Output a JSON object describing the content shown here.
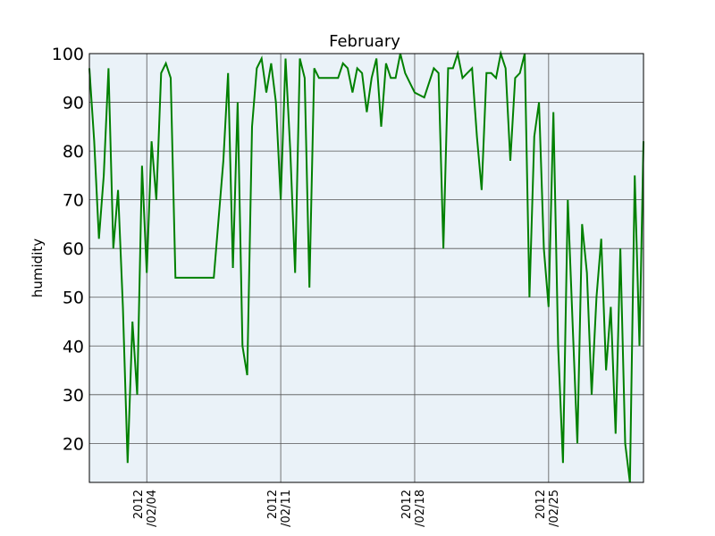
{
  "chart_data": {
    "type": "line",
    "title": "February",
    "xlabel": "",
    "ylabel": "humidity",
    "ylim": [
      12,
      100
    ],
    "xlim": [
      "2012-02-01T00:00",
      "2012-02-29T23:00"
    ],
    "grid": true,
    "legend": "none",
    "colors": {
      "plot_background": "#eaf2f8",
      "series": "#008000",
      "grid": "#555555"
    },
    "y_ticks": [
      {
        "value": 20,
        "label": "20"
      },
      {
        "value": 30,
        "label": "30"
      },
      {
        "value": 40,
        "label": "40"
      },
      {
        "value": 50,
        "label": "50"
      },
      {
        "value": 60,
        "label": "60"
      },
      {
        "value": 70,
        "label": "70"
      },
      {
        "value": 80,
        "label": "80"
      },
      {
        "value": 90,
        "label": "90"
      },
      {
        "value": 100,
        "label": "100"
      }
    ],
    "x_ticks": [
      {
        "value": "2012-02-04",
        "line1": "2012",
        "line2": "/02/04"
      },
      {
        "value": "2012-02-11",
        "line1": "2012",
        "line2": "/02/11"
      },
      {
        "value": "2012-02-18",
        "line1": "2012",
        "line2": "/02/18"
      },
      {
        "value": "2012-02-25",
        "line1": "2012",
        "line2": "/02/25"
      }
    ],
    "series": [
      {
        "color": "#008000",
        "x": [
          "2012-02-01T00:00",
          "2012-02-01T06:00",
          "2012-02-01T12:00",
          "2012-02-01T18:00",
          "2012-02-02T00:00",
          "2012-02-02T06:00",
          "2012-02-02T12:00",
          "2012-02-02T18:00",
          "2012-02-03T00:00",
          "2012-02-03T06:00",
          "2012-02-03T12:00",
          "2012-02-03T18:00",
          "2012-02-04T00:00",
          "2012-02-04T06:00",
          "2012-02-04T12:00",
          "2012-02-04T18:00",
          "2012-02-05T00:00",
          "2012-02-05T06:00",
          "2012-02-05T12:00",
          "2012-02-05T18:00",
          "2012-02-06T00:00",
          "2012-02-06T12:00",
          "2012-02-07T00:00",
          "2012-02-07T12:00",
          "2012-02-08T00:00",
          "2012-02-08T06:00",
          "2012-02-08T12:00",
          "2012-02-08T18:00",
          "2012-02-09T00:00",
          "2012-02-09T06:00",
          "2012-02-09T12:00",
          "2012-02-09T18:00",
          "2012-02-10T00:00",
          "2012-02-10T06:00",
          "2012-02-10T12:00",
          "2012-02-10T18:00",
          "2012-02-11T00:00",
          "2012-02-11T06:00",
          "2012-02-11T12:00",
          "2012-02-11T18:00",
          "2012-02-12T00:00",
          "2012-02-12T06:00",
          "2012-02-12T12:00",
          "2012-02-12T18:00",
          "2012-02-13T00:00",
          "2012-02-13T12:00",
          "2012-02-14T00:00",
          "2012-02-14T06:00",
          "2012-02-14T12:00",
          "2012-02-14T18:00",
          "2012-02-15T00:00",
          "2012-02-15T06:00",
          "2012-02-15T12:00",
          "2012-02-15T18:00",
          "2012-02-16T00:00",
          "2012-02-16T06:00",
          "2012-02-16T12:00",
          "2012-02-16T18:00",
          "2012-02-17T00:00",
          "2012-02-17T06:00",
          "2012-02-17T12:00",
          "2012-02-17T18:00",
          "2012-02-18T00:00",
          "2012-02-18T12:00",
          "2012-02-19T00:00",
          "2012-02-19T06:00",
          "2012-02-19T12:00",
          "2012-02-19T18:00",
          "2012-02-20T00:00",
          "2012-02-20T06:00",
          "2012-02-20T12:00",
          "2012-02-20T18:00",
          "2012-02-21T00:00",
          "2012-02-21T06:00",
          "2012-02-21T12:00",
          "2012-02-21T18:00",
          "2012-02-22T00:00",
          "2012-02-22T06:00",
          "2012-02-22T12:00",
          "2012-02-22T18:00",
          "2012-02-23T00:00",
          "2012-02-23T06:00",
          "2012-02-23T12:00",
          "2012-02-23T18:00",
          "2012-02-24T00:00",
          "2012-02-24T06:00",
          "2012-02-24T12:00",
          "2012-02-24T18:00",
          "2012-02-25T00:00",
          "2012-02-25T06:00",
          "2012-02-25T12:00",
          "2012-02-25T18:00",
          "2012-02-26T00:00",
          "2012-02-26T06:00",
          "2012-02-26T12:00",
          "2012-02-26T18:00",
          "2012-02-27T00:00",
          "2012-02-27T06:00",
          "2012-02-27T12:00",
          "2012-02-27T18:00",
          "2012-02-28T00:00",
          "2012-02-28T06:00",
          "2012-02-28T12:00",
          "2012-02-28T18:00",
          "2012-02-29T00:00",
          "2012-02-29T06:00",
          "2012-02-29T12:00",
          "2012-02-29T18:00",
          "2012-02-29T23:00"
        ],
        "y": [
          97,
          82,
          62,
          75,
          97,
          60,
          72,
          48,
          16,
          45,
          30,
          77,
          55,
          82,
          70,
          96,
          98,
          95,
          54,
          54,
          54,
          54,
          54,
          54,
          78,
          96,
          56,
          90,
          40,
          34,
          85,
          97,
          99,
          92,
          98,
          90,
          70,
          99,
          80,
          55,
          99,
          95,
          52,
          97,
          95,
          95,
          95,
          98,
          97,
          92,
          97,
          96,
          88,
          95,
          99,
          85,
          98,
          95,
          95,
          100,
          96,
          94,
          92,
          91,
          97,
          96,
          60,
          97,
          97,
          100,
          95,
          96,
          97,
          83,
          72,
          96,
          96,
          95,
          100,
          97,
          78,
          95,
          96,
          100,
          50,
          83,
          90,
          60,
          48,
          88,
          40,
          16,
          70,
          45,
          20,
          65,
          55,
          30,
          50,
          62,
          35,
          48,
          22,
          60,
          20,
          12,
          75,
          40,
          82
        ]
      }
    ]
  }
}
